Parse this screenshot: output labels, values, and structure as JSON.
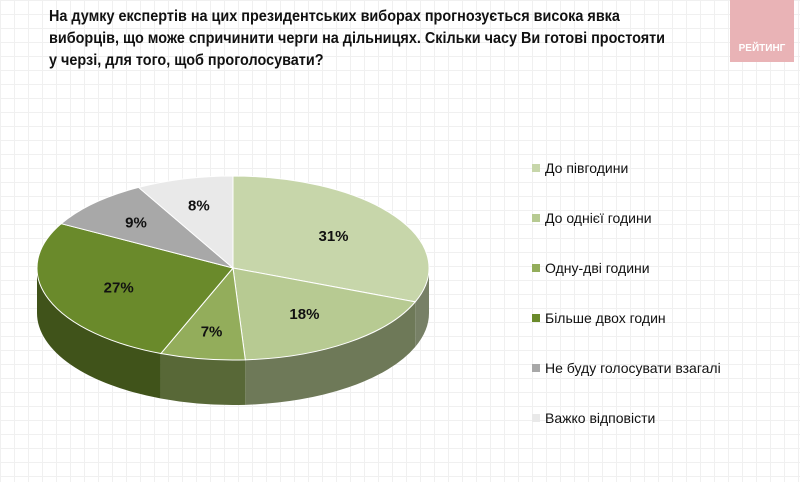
{
  "logo": "РЕЙТИНГ",
  "chart_data": {
    "type": "pie",
    "title": "На думку експертів на цих президентських виборах прогнозується висока явка виборців, що може спричинити черги на дільницях. Скільки часу Ви готові простояти у черзі, для того, щоб проголосувати?",
    "legend_position": "right",
    "categories": [
      "До півгодини",
      "До однієї години",
      "Одну-дві години",
      "Більше двох годин",
      "Не буду голосувати взагалі",
      "Важко відповісти"
    ],
    "values": [
      31,
      18,
      7,
      27,
      9,
      8
    ],
    "labels": [
      "31%",
      "18%",
      "7%",
      "27%",
      "9%",
      "8%"
    ],
    "colors": [
      "#c7d6aa",
      "#b7ca92",
      "#93ad5b",
      "#6a8a2b",
      "#a8a8a8",
      "#e9e9e9"
    ]
  }
}
